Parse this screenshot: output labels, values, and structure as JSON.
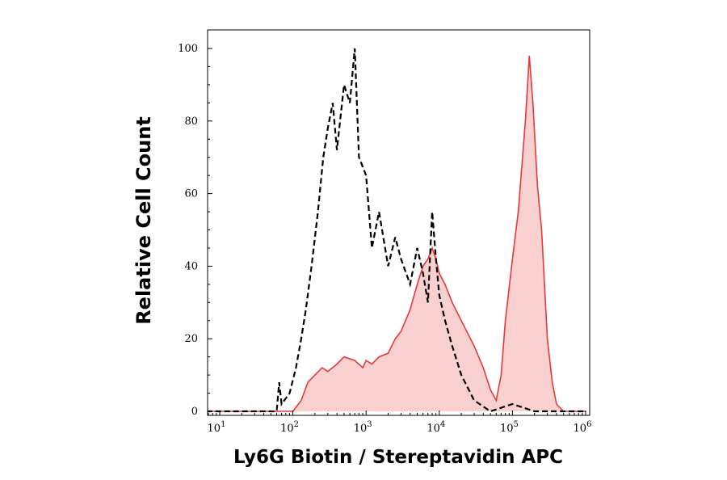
{
  "chart_data": {
    "type": "area",
    "xlabel": "Ly6G Biotin / Stereptavidin APC",
    "ylabel": "Relative Cell Count",
    "x_scale": "log",
    "xlim": [
      5,
      1000000
    ],
    "ylim": [
      0,
      105
    ],
    "x_ticks": [
      {
        "value": 10,
        "base": "10",
        "exp": "1"
      },
      {
        "value": 100,
        "base": "10",
        "exp": "2"
      },
      {
        "value": 1000,
        "base": "10",
        "exp": "3"
      },
      {
        "value": 10000,
        "base": "10",
        "exp": "4"
      },
      {
        "value": 100000,
        "base": "10",
        "exp": "5"
      },
      {
        "value": 1000000,
        "base": "10",
        "exp": "6"
      }
    ],
    "y_ticks": [
      0,
      20,
      40,
      60,
      80,
      100
    ],
    "grid": false,
    "series": [
      {
        "style": "dashed",
        "color": "#000000",
        "points": [
          [
            5,
            0
          ],
          [
            60,
            0
          ],
          [
            65,
            8
          ],
          [
            70,
            2
          ],
          [
            90,
            5
          ],
          [
            110,
            12
          ],
          [
            130,
            20
          ],
          [
            150,
            28
          ],
          [
            180,
            40
          ],
          [
            220,
            55
          ],
          [
            260,
            70
          ],
          [
            300,
            78
          ],
          [
            350,
            85
          ],
          [
            400,
            72
          ],
          [
            500,
            90
          ],
          [
            600,
            85
          ],
          [
            700,
            100
          ],
          [
            800,
            70
          ],
          [
            1000,
            65
          ],
          [
            1200,
            45
          ],
          [
            1500,
            55
          ],
          [
            2000,
            40
          ],
          [
            2500,
            48
          ],
          [
            3000,
            42
          ],
          [
            4000,
            35
          ],
          [
            5000,
            45
          ],
          [
            6000,
            38
          ],
          [
            7000,
            30
          ],
          [
            8000,
            55
          ],
          [
            9000,
            42
          ],
          [
            10000,
            32
          ],
          [
            12000,
            25
          ],
          [
            15000,
            18
          ],
          [
            20000,
            10
          ],
          [
            30000,
            3
          ],
          [
            50000,
            0
          ],
          [
            100000,
            2
          ],
          [
            200000,
            0
          ],
          [
            1000000,
            0
          ]
        ]
      },
      {
        "style": "filled",
        "color": "#e53935",
        "fill": "#f8c8c8",
        "points": [
          [
            5,
            0
          ],
          [
            100,
            0
          ],
          [
            130,
            3
          ],
          [
            160,
            8
          ],
          [
            200,
            10
          ],
          [
            250,
            12
          ],
          [
            300,
            11
          ],
          [
            400,
            13
          ],
          [
            500,
            15
          ],
          [
            700,
            14
          ],
          [
            900,
            12
          ],
          [
            1000,
            14
          ],
          [
            1200,
            13
          ],
          [
            1500,
            15
          ],
          [
            2000,
            16
          ],
          [
            2500,
            20
          ],
          [
            3000,
            22
          ],
          [
            4000,
            28
          ],
          [
            5000,
            35
          ],
          [
            6000,
            40
          ],
          [
            7000,
            42
          ],
          [
            8000,
            45
          ],
          [
            9000,
            42
          ],
          [
            10000,
            38
          ],
          [
            12000,
            35
          ],
          [
            15000,
            30
          ],
          [
            20000,
            25
          ],
          [
            30000,
            18
          ],
          [
            40000,
            12
          ],
          [
            50000,
            6
          ],
          [
            60000,
            3
          ],
          [
            70000,
            10
          ],
          [
            80000,
            25
          ],
          [
            100000,
            42
          ],
          [
            120000,
            55
          ],
          [
            150000,
            80
          ],
          [
            170000,
            98
          ],
          [
            190000,
            85
          ],
          [
            220000,
            62
          ],
          [
            250000,
            50
          ],
          [
            300000,
            20
          ],
          [
            350000,
            8
          ],
          [
            400000,
            2
          ],
          [
            500000,
            0
          ],
          [
            1000000,
            0
          ]
        ]
      }
    ]
  }
}
